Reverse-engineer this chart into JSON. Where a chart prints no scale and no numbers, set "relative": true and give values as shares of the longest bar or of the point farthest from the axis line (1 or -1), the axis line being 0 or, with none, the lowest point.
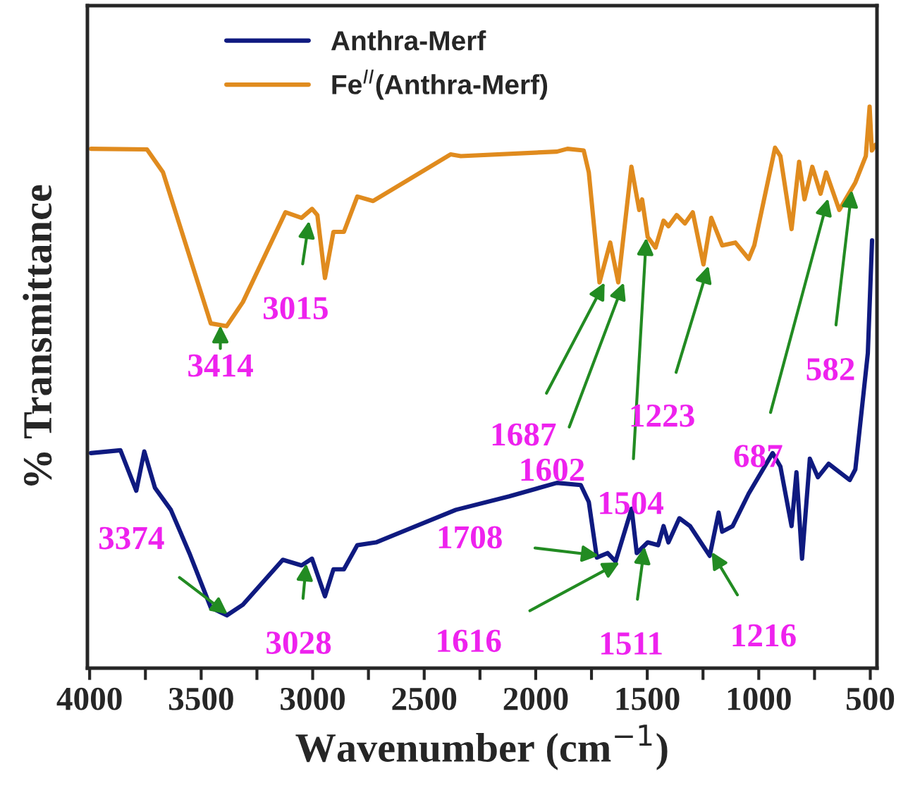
{
  "chart_data": {
    "type": "line",
    "relative": true,
    "xlabel": "Wavenumber (cm$^{−1}$)",
    "ylabel": "% Transmittance",
    "xlim": [
      4010,
      470
    ],
    "xticks": [
      4000,
      {
        "value": 3750,
        "label": null
      },
      3500,
      {
        "value": 3250,
        "label": null
      },
      3000,
      {
        "value": 2750,
        "label": null
      },
      2500,
      {
        "value": 2250,
        "label": null
      },
      2000,
      {
        "value": 1750,
        "label": null
      },
      1500,
      {
        "value": 1250,
        "label": null
      },
      1000,
      {
        "value": 750,
        "label": null
      },
      500
    ],
    "tick_labels": "x",
    "grid": false,
    "legend": "top",
    "marker": "none",
    "line_style": "solid",
    "series": [
      {
        "name": "Anthra-Merf",
        "color": "#0f1a80",
        "x": [
          3994,
          3862,
          3791,
          3755,
          3707,
          3636,
          3553,
          3457,
          3385,
          3313,
          3134,
          3050,
          3003,
          2945,
          2907,
          2860,
          2800,
          2716,
          2358,
          2119,
          1905,
          1798,
          1762,
          1726,
          1678,
          1642,
          1570,
          1547,
          1498,
          1451,
          1427,
          1405,
          1356,
          1308,
          1220,
          1180,
          1164,
          1117,
          1045,
          938,
          903,
          853,
          831,
          806,
          771,
          735,
          687,
          592,
          567,
          511,
          492
        ],
        "values": [
          0.383,
          0.388,
          0.316,
          0.386,
          0.321,
          0.282,
          0.205,
          0.108,
          0.094,
          0.113,
          0.193,
          0.183,
          0.195,
          0.128,
          0.176,
          0.176,
          0.219,
          0.224,
          0.282,
          0.306,
          0.33,
          0.326,
          0.296,
          0.197,
          0.205,
          0.19,
          0.284,
          0.205,
          0.224,
          0.219,
          0.253,
          0.224,
          0.267,
          0.253,
          0.2,
          0.277,
          0.243,
          0.253,
          0.311,
          0.383,
          0.359,
          0.253,
          0.349,
          0.195,
          0.373,
          0.34,
          0.364,
          0.335,
          0.354,
          0.561,
          0.762
        ]
      },
      {
        "name": "Fe$^{II}$(Anthra-Merf)",
        "color": "#e08b1e",
        "x": [
          3994,
          3743,
          3671,
          3457,
          3386,
          3313,
          3122,
          3050,
          3003,
          2979,
          2945,
          2907,
          2860,
          2800,
          2729,
          2382,
          2336,
          1905,
          1858,
          1785,
          1762,
          1714,
          1666,
          1630,
          1571,
          1536,
          1523,
          1498,
          1463,
          1427,
          1405,
          1368,
          1331,
          1296,
          1248,
          1213,
          1164,
          1105,
          1045,
          1020,
          927,
          903,
          853,
          819,
          795,
          760,
          723,
          698,
          639,
          567,
          520,
          503,
          493,
          477
        ],
        "values": [
          0.925,
          0.924,
          0.883,
          0.614,
          0.609,
          0.652,
          0.812,
          0.802,
          0.818,
          0.807,
          0.695,
          0.777,
          0.777,
          0.84,
          0.832,
          0.915,
          0.912,
          0.92,
          0.925,
          0.922,
          0.883,
          0.687,
          0.758,
          0.687,
          0.893,
          0.816,
          0.835,
          0.768,
          0.749,
          0.797,
          0.787,
          0.807,
          0.792,
          0.812,
          0.719,
          0.802,
          0.753,
          0.758,
          0.729,
          0.753,
          0.927,
          0.912,
          0.782,
          0.902,
          0.835,
          0.893,
          0.845,
          0.883,
          0.816,
          0.865,
          0.912,
          1.0,
          0.922,
          0.932
        ]
      }
    ],
    "annotations": [
      {
        "text": "3414",
        "x": 3414,
        "y": 0.614
      },
      {
        "text": "3015",
        "x": 3015,
        "y": 0.8
      },
      {
        "text": "1687",
        "x": 1687,
        "y": 0.69
      },
      {
        "text": "1602",
        "x": 1602,
        "y": 0.69
      },
      {
        "text": "1504",
        "x": 1504,
        "y": 0.77
      },
      {
        "text": "1223",
        "x": 1223,
        "y": 0.72
      },
      {
        "text": "687",
        "x": 687,
        "y": 0.84
      },
      {
        "text": "582",
        "x": 582,
        "y": 0.855
      },
      {
        "text": "3374",
        "x": 3374,
        "y": 0.094
      },
      {
        "text": "3028",
        "x": 3028,
        "y": 0.19
      },
      {
        "text": "1708",
        "x": 1708,
        "y": 0.2
      },
      {
        "text": "1616",
        "x": 1616,
        "y": 0.19
      },
      {
        "text": "1511",
        "x": 1511,
        "y": 0.22
      },
      {
        "text": "1216",
        "x": 1216,
        "y": 0.21
      }
    ]
  }
}
